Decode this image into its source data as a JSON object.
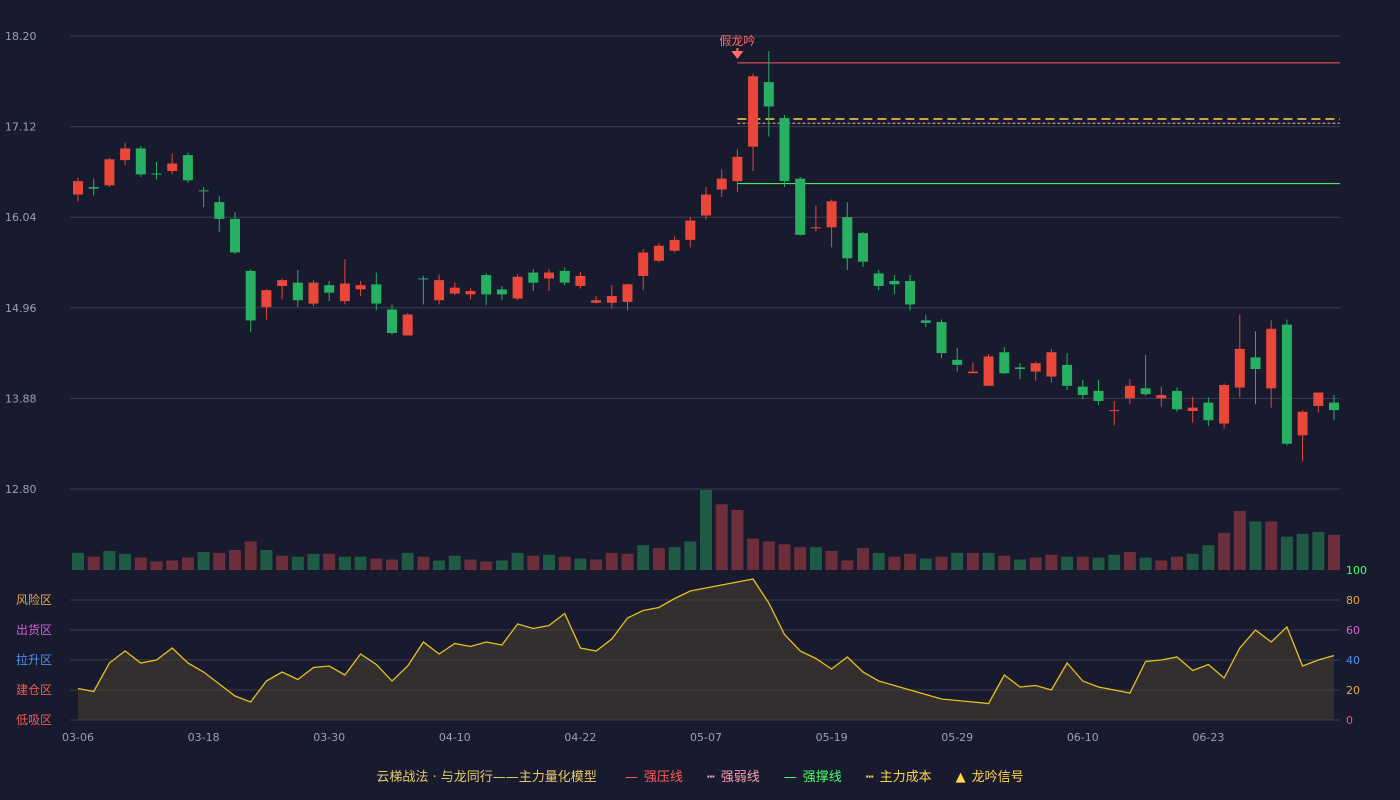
{
  "legend": {
    "title": "云梯战法 · 与龙同行——主力量化模型",
    "items": [
      {
        "label": "强压线",
        "color": "#ff5a5a",
        "symbol": "—"
      },
      {
        "label": "强弱线",
        "color": "#ff9fb0",
        "symbol": "┅"
      },
      {
        "label": "强撑线",
        "color": "#4cff6a",
        "symbol": "—"
      },
      {
        "label": "主力成本",
        "color": "#ffd54a",
        "symbol": "┅"
      },
      {
        "label": "龙吟信号",
        "color": "#ffd54a",
        "symbol": "▲"
      }
    ]
  },
  "chart_data": [
    {
      "type": "candlestick",
      "x_ticks": [
        "03-06",
        "03-18",
        "03-30",
        "04-10",
        "04-22",
        "05-07",
        "05-19",
        "05-29",
        "06-10",
        "06-23"
      ],
      "y_ticks": [
        "18.20",
        "17.12",
        "16.04",
        "14.96",
        "13.88",
        "12.80"
      ],
      "ylim": [
        12.8,
        18.2
      ],
      "grid": true,
      "colors": {
        "up": "#e8473a",
        "down": "#27b062"
      },
      "annotation": {
        "text": "假龙吟",
        "index": 42,
        "color": "#ff6b6b"
      },
      "lines": {
        "strong_pressure": {
          "value": 17.88,
          "from_index": 42,
          "color": "#ff5a5a"
        },
        "strong_weak": {
          "value": 17.16,
          "from_index": 42,
          "color": "#ff9fb0"
        },
        "main_cost": {
          "value": 17.21,
          "from_index": 42,
          "color": "#ffd54a"
        },
        "strong_support": {
          "value": 16.44,
          "from_index": 42,
          "color": "#4cff6a"
        }
      },
      "candles": [
        [
          16.31,
          16.47,
          16.51,
          16.23
        ],
        [
          16.4,
          16.38,
          16.5,
          16.3
        ],
        [
          16.42,
          16.73,
          16.75,
          16.4
        ],
        [
          16.72,
          16.86,
          16.93,
          16.66
        ],
        [
          16.86,
          16.55,
          16.89,
          16.52
        ],
        [
          16.56,
          16.55,
          16.7,
          16.49
        ],
        [
          16.59,
          16.68,
          16.8,
          16.55
        ],
        [
          16.78,
          16.48,
          16.81,
          16.45
        ],
        [
          16.36,
          16.35,
          16.4,
          16.16
        ],
        [
          16.22,
          16.02,
          16.29,
          15.86
        ],
        [
          16.02,
          15.62,
          16.1,
          15.6
        ],
        [
          15.4,
          14.81,
          15.42,
          14.67
        ],
        [
          14.97,
          15.17,
          15.18,
          14.82
        ],
        [
          15.22,
          15.29,
          15.31,
          15.06
        ],
        [
          15.26,
          15.05,
          15.41,
          14.97
        ],
        [
          15.01,
          15.26,
          15.29,
          14.98
        ],
        [
          15.23,
          15.14,
          15.28,
          15.04
        ],
        [
          15.04,
          15.25,
          15.54,
          15.0
        ],
        [
          15.18,
          15.23,
          15.28,
          15.1
        ],
        [
          15.24,
          15.01,
          15.38,
          14.93
        ],
        [
          14.94,
          14.66,
          15.0,
          14.64
        ],
        [
          14.63,
          14.88,
          14.9,
          14.65
        ],
        [
          15.31,
          15.3,
          15.34,
          15.0
        ],
        [
          15.05,
          15.29,
          15.36,
          15.0
        ],
        [
          15.13,
          15.2,
          15.26,
          15.11
        ],
        [
          15.12,
          15.16,
          15.19,
          15.06
        ],
        [
          15.35,
          15.12,
          15.37,
          14.99
        ],
        [
          15.18,
          15.12,
          15.22,
          15.05
        ],
        [
          15.07,
          15.33,
          15.36,
          15.05
        ],
        [
          15.38,
          15.26,
          15.42,
          15.16
        ],
        [
          15.31,
          15.38,
          15.42,
          15.16
        ],
        [
          15.4,
          15.26,
          15.44,
          15.23
        ],
        [
          15.22,
          15.34,
          15.39,
          15.19
        ],
        [
          15.02,
          15.05,
          15.1,
          15.01
        ],
        [
          15.02,
          15.1,
          15.23,
          14.95
        ],
        [
          15.03,
          15.24,
          15.25,
          14.93
        ],
        [
          15.34,
          15.62,
          15.66,
          15.17
        ],
        [
          15.52,
          15.7,
          15.73,
          15.5
        ],
        [
          15.64,
          15.77,
          15.81,
          15.62
        ],
        [
          15.77,
          16.0,
          16.04,
          15.68
        ],
        [
          16.06,
          16.31,
          16.4,
          16.01
        ],
        [
          16.37,
          16.5,
          16.61,
          16.28
        ],
        [
          16.47,
          16.76,
          16.85,
          16.34
        ],
        [
          16.88,
          17.72,
          17.75,
          16.59
        ],
        [
          17.65,
          17.36,
          18.02,
          17.0
        ],
        [
          17.22,
          16.47,
          17.26,
          16.4
        ],
        [
          16.5,
          15.83,
          16.52,
          15.82
        ],
        [
          15.92,
          15.92,
          16.18,
          15.87
        ],
        [
          15.92,
          16.23,
          16.25,
          15.68
        ],
        [
          16.04,
          15.55,
          16.22,
          15.41
        ],
        [
          15.85,
          15.51,
          15.86,
          15.45
        ],
        [
          15.37,
          15.22,
          15.41,
          15.17
        ],
        [
          15.28,
          15.24,
          15.35,
          15.12
        ],
        [
          15.28,
          15.0,
          15.35,
          14.93
        ],
        [
          14.81,
          14.78,
          14.88,
          14.73
        ],
        [
          14.79,
          14.42,
          14.82,
          14.36
        ],
        [
          14.34,
          14.28,
          14.48,
          14.2
        ],
        [
          14.18,
          14.2,
          14.31,
          14.2
        ],
        [
          14.03,
          14.38,
          14.41,
          14.1
        ],
        [
          14.43,
          14.18,
          14.49,
          14.17
        ],
        [
          14.25,
          14.23,
          14.3,
          14.11
        ],
        [
          14.2,
          14.3,
          14.32,
          14.09
        ],
        [
          14.14,
          14.43,
          14.47,
          14.07
        ],
        [
          14.28,
          14.03,
          14.42,
          13.98
        ],
        [
          14.02,
          13.92,
          14.1,
          13.87
        ],
        [
          13.97,
          13.85,
          14.1,
          13.8
        ],
        [
          13.74,
          13.74,
          13.85,
          13.56
        ],
        [
          13.88,
          14.03,
          14.11,
          13.81
        ],
        [
          14.0,
          13.93,
          14.4,
          13.91
        ],
        [
          13.88,
          13.92,
          14.02,
          13.78
        ],
        [
          13.97,
          13.75,
          14.01,
          13.72
        ],
        [
          13.73,
          13.77,
          13.9,
          13.59
        ],
        [
          13.83,
          13.62,
          13.89,
          13.55
        ],
        [
          13.58,
          14.04,
          14.06,
          13.52
        ],
        [
          14.01,
          14.47,
          14.88,
          13.89
        ],
        [
          14.37,
          14.23,
          14.68,
          13.81
        ],
        [
          14.0,
          14.71,
          14.81,
          13.77
        ],
        [
          14.76,
          13.34,
          14.82,
          13.32
        ],
        [
          13.44,
          13.72,
          13.74,
          13.13
        ],
        [
          13.79,
          13.95,
          13.93,
          13.71
        ],
        [
          13.83,
          13.74,
          13.92,
          13.62
        ]
      ],
      "volume": [
        18,
        14,
        20,
        17,
        13,
        9,
        10,
        13,
        19,
        18,
        21,
        30,
        21,
        15,
        14,
        17,
        17,
        14,
        14,
        12,
        11,
        18,
        14,
        10,
        15,
        11,
        9,
        10,
        18,
        15,
        16,
        14,
        12,
        11,
        18,
        17,
        26,
        23,
        24,
        30,
        84,
        69,
        63,
        33,
        30,
        27,
        24,
        24,
        20,
        10,
        23,
        18,
        14,
        17,
        12,
        14,
        18,
        18,
        18,
        15,
        11,
        13,
        16,
        14,
        14,
        13,
        16,
        19,
        13,
        10,
        14,
        17,
        26,
        39,
        62,
        51,
        51,
        35,
        38,
        40,
        37
      ],
      "volume_up_flags": [
        0,
        1,
        0,
        0,
        1,
        1,
        1,
        1,
        0,
        1,
        1,
        1,
        0,
        1,
        0,
        0,
        1,
        0,
        0,
        1,
        1,
        0,
        1,
        0,
        0,
        1,
        1,
        0,
        0,
        1,
        0,
        1,
        0,
        1,
        1,
        1,
        0,
        1,
        0,
        0,
        0,
        1,
        1,
        1,
        1,
        1,
        1,
        0,
        1,
        1,
        1,
        0,
        1,
        1,
        0,
        1,
        0,
        1,
        0,
        1,
        0,
        1,
        1,
        0,
        1,
        0,
        0,
        1,
        0,
        1,
        1,
        0,
        0,
        1,
        1,
        0,
        1,
        0,
        0,
        0,
        1
      ],
      "indicator": {
        "right_ticks": [
          "100",
          "80",
          "60",
          "40",
          "20",
          "0"
        ],
        "zone_labels": [
          {
            "text": "风险区",
            "color": "#e6a64a"
          },
          {
            "text": "出货区",
            "color": "#d65fd6"
          },
          {
            "text": "拉升区",
            "color": "#4d8ff0"
          },
          {
            "text": "建仓区",
            "color": "#ef5a5a"
          },
          {
            "text": "低吸区",
            "color": "#ef5a5a"
          }
        ],
        "values": [
          21,
          19,
          38,
          46,
          38,
          40,
          48,
          38,
          32,
          24,
          16,
          12,
          26,
          32,
          27,
          35,
          36,
          30,
          44,
          37,
          26,
          36,
          52,
          44,
          51,
          49,
          52,
          50,
          64,
          61,
          63,
          71,
          48,
          46,
          54,
          68,
          73,
          75,
          81,
          86,
          88,
          90,
          92,
          94,
          78,
          57,
          46,
          41,
          34,
          42,
          32,
          26,
          23,
          20,
          17,
          14,
          13,
          12,
          11,
          30,
          22,
          23,
          20,
          38,
          26,
          22,
          20,
          18,
          39,
          40,
          42,
          33,
          37,
          28,
          48,
          60,
          52,
          62,
          36,
          40,
          43
        ]
      }
    }
  ]
}
